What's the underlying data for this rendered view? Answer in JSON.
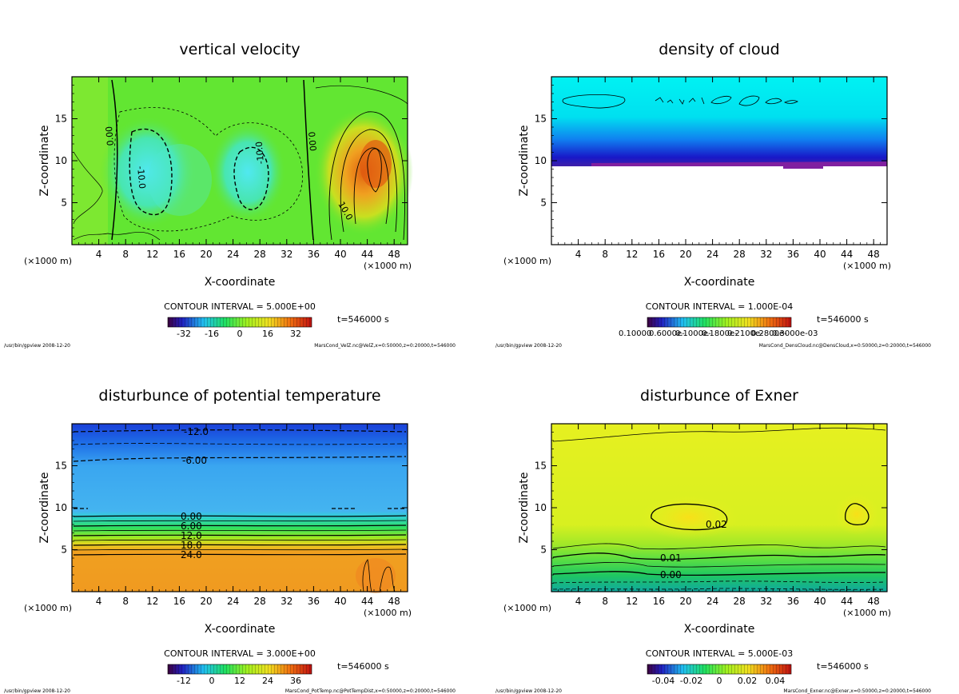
{
  "chart_data": [
    {
      "type": "heatmap",
      "title": "vertical velocity",
      "xlabel": "X-coordinate",
      "ylabel": "Z-coordinate",
      "x_unit_left": "(×1000 m)",
      "x_unit_right": "(×1000 m)",
      "xlim": [
        0,
        50
      ],
      "ylim": [
        0,
        20
      ],
      "xticks": [
        "4",
        "8",
        "12",
        "16",
        "20",
        "24",
        "28",
        "32",
        "36",
        "40",
        "44",
        "48"
      ],
      "yticks": [
        "5",
        "10",
        "15"
      ],
      "contour_interval": "CONTOUR INTERVAL = 5.000E+00",
      "time": "t=546000 s",
      "colorbar_labels": [
        "-32",
        "-16",
        "0",
        "16",
        "32"
      ],
      "contour_labels": [
        "0.00",
        "-10.0",
        "-10.0",
        "0.00",
        "10.0"
      ],
      "footer_left": "/usr/bin/gpview  2008-12-20",
      "footer_right": "MarsCond_VelZ.nc@VelZ,x=0:50000,z=0:20000,t=546000",
      "colors": {
        "background": "#62e632",
        "low": "#40e6e0",
        "high": "#e07a10"
      }
    },
    {
      "type": "heatmap",
      "title": "density of cloud",
      "xlabel": "X-coordinate",
      "ylabel": "Z-coordinate",
      "x_unit_left": "(×1000 m)",
      "x_unit_right": "(×1000 m)",
      "xlim": [
        0,
        50
      ],
      "ylim": [
        0,
        20
      ],
      "xticks": [
        "4",
        "8",
        "12",
        "16",
        "20",
        "24",
        "28",
        "32",
        "36",
        "40",
        "44",
        "48"
      ],
      "yticks": [
        "5",
        "10",
        "15"
      ],
      "contour_interval": "CONTOUR INTERVAL = 1.000E-04",
      "time": "t=546000 s",
      "colorbar_labels": [
        "0.10000",
        "0.6000e-",
        "0.1000e-",
        "0.1800e-",
        "0.2100e-",
        "0.2800e-",
        "0.3000e-03"
      ],
      "footer_left": "/usr/bin/gpview  2008-12-20",
      "footer_right": "MarsCond_DensCloud.nc@DensCloud,x=0:50000,z=0:20000,t=546000",
      "colors": {
        "top": "#00f0f0",
        "bottom": "#1010c0",
        "base": "#8020a0"
      }
    },
    {
      "type": "heatmap",
      "title": "disturbunce of potential temperature",
      "xlabel": "X-coordinate",
      "ylabel": "Z-coordinate",
      "x_unit_left": "(×1000 m)",
      "x_unit_right": "(×1000 m)",
      "xlim": [
        0,
        50
      ],
      "ylim": [
        0,
        20
      ],
      "xticks": [
        "4",
        "8",
        "12",
        "16",
        "20",
        "24",
        "28",
        "32",
        "36",
        "40",
        "44",
        "48"
      ],
      "yticks": [
        "5",
        "10",
        "15"
      ],
      "contour_interval": "CONTOUR INTERVAL = 3.000E+00",
      "time": "t=546000 s",
      "colorbar_labels": [
        "-12",
        "0",
        "12",
        "24",
        "36"
      ],
      "contour_labels": [
        "-12.0",
        "-6.00",
        "0.00",
        "6.00",
        "12.0",
        "18.0",
        "24.0"
      ],
      "footer_left": "/usr/bin/gpview  2008-12-20",
      "footer_right": "MarsCond_PotTemp.nc@PotTempDist,x=0:50000,z=0:20000,t=546000",
      "colors": {
        "top": "#1060e0",
        "middle": "#40b0f0",
        "bottom": "#f0a020"
      }
    },
    {
      "type": "heatmap",
      "title": "disturbunce of Exner",
      "xlabel": "X-coordinate",
      "ylabel": "Z-coordinate",
      "x_unit_left": "(×1000 m)",
      "x_unit_right": "(×1000 m)",
      "xlim": [
        0,
        50
      ],
      "ylim": [
        0,
        20
      ],
      "xticks": [
        "4",
        "8",
        "12",
        "16",
        "20",
        "24",
        "28",
        "32",
        "36",
        "40",
        "44",
        "48"
      ],
      "yticks": [
        "5",
        "10",
        "15"
      ],
      "contour_interval": "CONTOUR INTERVAL = 5.000E-03",
      "time": "t=546000 s",
      "colorbar_labels": [
        "-0.04",
        "-0.02",
        "0",
        "0.02",
        "0.04"
      ],
      "contour_labels": [
        "0.02",
        "0.01",
        "0.00"
      ],
      "footer_left": "/usr/bin/gpview  2008-12-20",
      "footer_right": "MarsCond_Exner.nc@Exner,x=0:50000,z=0:20000,t=546000",
      "colors": {
        "background": "#d8f020",
        "core": "#f8e818",
        "bottom": "#10c060"
      }
    }
  ]
}
